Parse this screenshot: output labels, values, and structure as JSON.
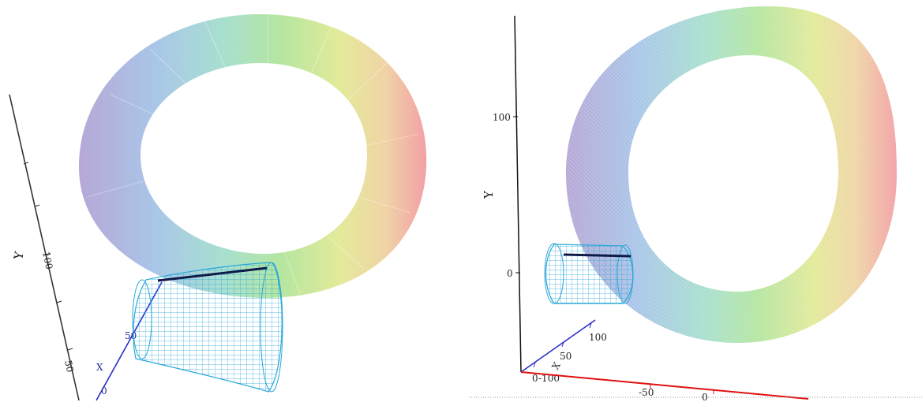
{
  "left_view": {
    "y_axis_label": "Y",
    "y_ticks": [
      "100",
      "50"
    ],
    "x_axis_label": "X",
    "x_ticks": [
      "50",
      "0"
    ]
  },
  "right_view": {
    "y_axis_label": "Y",
    "y_ticks": [
      "100",
      "0"
    ],
    "x_ticks": [
      "100",
      "50",
      "0",
      "-100"
    ],
    "x_axis_label": "X",
    "z_ticks": [
      "-50",
      "0"
    ]
  },
  "colors": {
    "torus_gradient": [
      "#b6a8d6",
      "#a9c6e8",
      "#a8e0cf",
      "#b5e6a0",
      "#e3ea9a",
      "#f0d4a6",
      "#f2a0a6"
    ],
    "cylinder_wire": "#2aa7d8",
    "highlight_line": "#0e1a4a",
    "axis_x": "#2a2fc8",
    "axis_z": "#e01010",
    "axis_y": "#111111"
  }
}
